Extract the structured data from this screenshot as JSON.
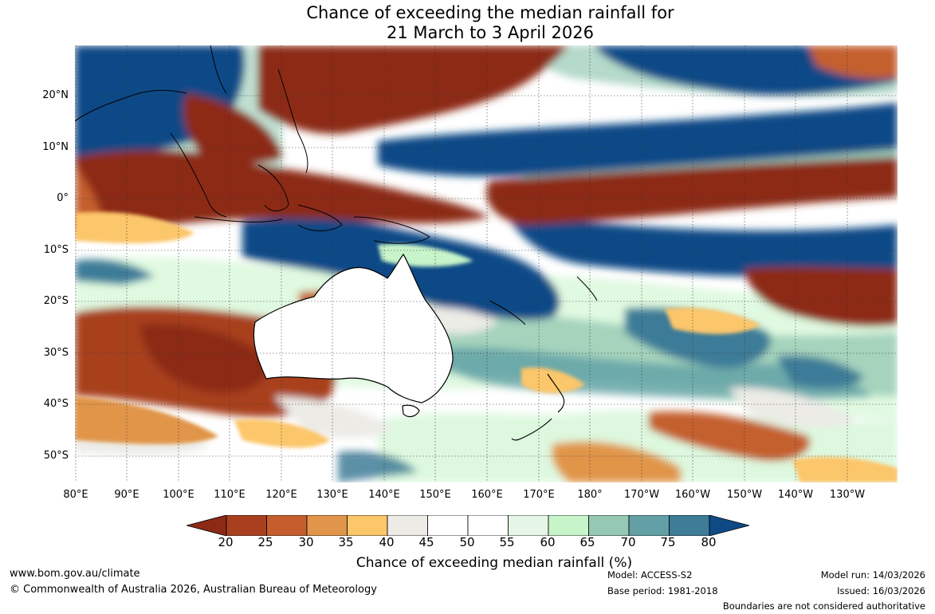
{
  "title": {
    "line1": "Chance of exceeding the median rainfall for",
    "line2": "21 March to 3 April 2026"
  },
  "map": {
    "lat_labels": [
      "20°N",
      "10°N",
      "0°",
      "10°S",
      "20°S",
      "30°S",
      "40°S",
      "50°S"
    ],
    "lon_labels": [
      "80°E",
      "90°E",
      "100°E",
      "110°E",
      "120°E",
      "130°E",
      "140°E",
      "150°E",
      "160°E",
      "170°E",
      "180°",
      "170°W",
      "160°W",
      "150°W",
      "140°W",
      "130°W"
    ]
  },
  "colorbar": {
    "ticks": [
      "20",
      "25",
      "30",
      "35",
      "40",
      "45",
      "50",
      "55",
      "60",
      "65",
      "70",
      "75",
      "80"
    ],
    "label": "Chance of exceeding median rainfall (%)",
    "colors": [
      "#8c2a16",
      "#a8401f",
      "#c45f2d",
      "#e0954a",
      "#fcc66b",
      "#ecebe6",
      "#ffffff",
      "#ffffff",
      "#e6f6e6",
      "#c7f4c9",
      "#96c9b3",
      "#62a0a6",
      "#3e7c98",
      "#0e4a86"
    ]
  },
  "footer": {
    "website": "www.bom.gov.au/climate",
    "copyright": "© Commonwealth of Australia 2026, Australian Bureau of Meteorology",
    "model": "Model: ACCESS-S2",
    "base_period": "Base period: 1981-2018",
    "model_run": "Model run: 14/03/2026",
    "issued": "Issued: 16/03/2026",
    "disclaimer": "Boundaries are not considered authoritative"
  }
}
